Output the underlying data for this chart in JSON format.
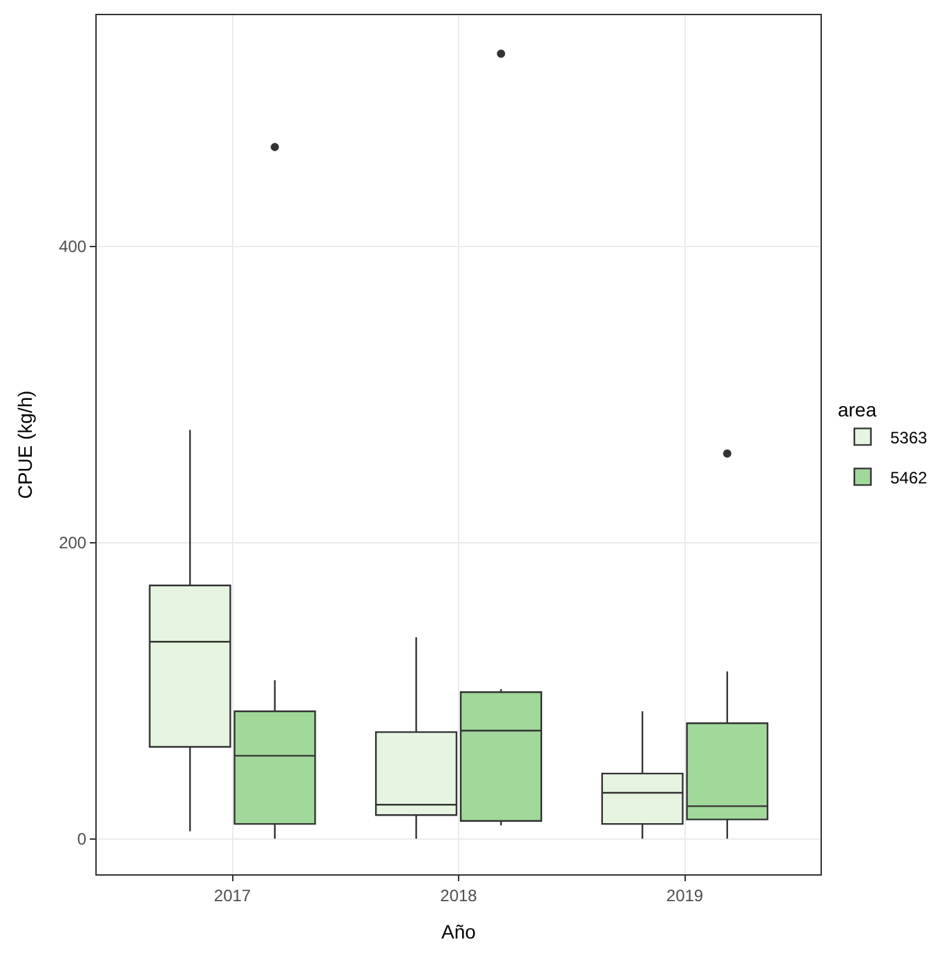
{
  "chart_data": {
    "type": "box",
    "xlabel": "Año",
    "ylabel": "CPUE (kg/h)",
    "legend_title": "area",
    "categories": [
      "2017",
      "2018",
      "2019"
    ],
    "ylim": [
      -24,
      556
    ],
    "yticks": [
      0,
      200,
      400
    ],
    "grid": true,
    "legend": "right",
    "series": [
      {
        "name": "5363",
        "color": "#e5f5e0",
        "boxes": [
          {
            "low": 5,
            "q1": 62,
            "median": 133,
            "q3": 171,
            "high": 276
          },
          {
            "low": 0,
            "q1": 16,
            "median": 23,
            "q3": 72,
            "high": 136
          },
          {
            "low": 0,
            "q1": 10,
            "median": 31,
            "q3": 44,
            "high": 86
          }
        ]
      },
      {
        "name": "5462",
        "color": "#a1d99b",
        "boxes": [
          {
            "low": 0,
            "q1": 10,
            "median": 56,
            "q3": 86,
            "high": 107,
            "outliers": [
              467
            ]
          },
          {
            "low": 9,
            "q1": 12,
            "median": 73,
            "q3": 99,
            "high": 101,
            "outliers": [
              530
            ]
          },
          {
            "low": 0,
            "q1": 13,
            "median": 22,
            "q3": 78,
            "high": 113,
            "outliers": [
              260
            ]
          }
        ]
      }
    ]
  }
}
